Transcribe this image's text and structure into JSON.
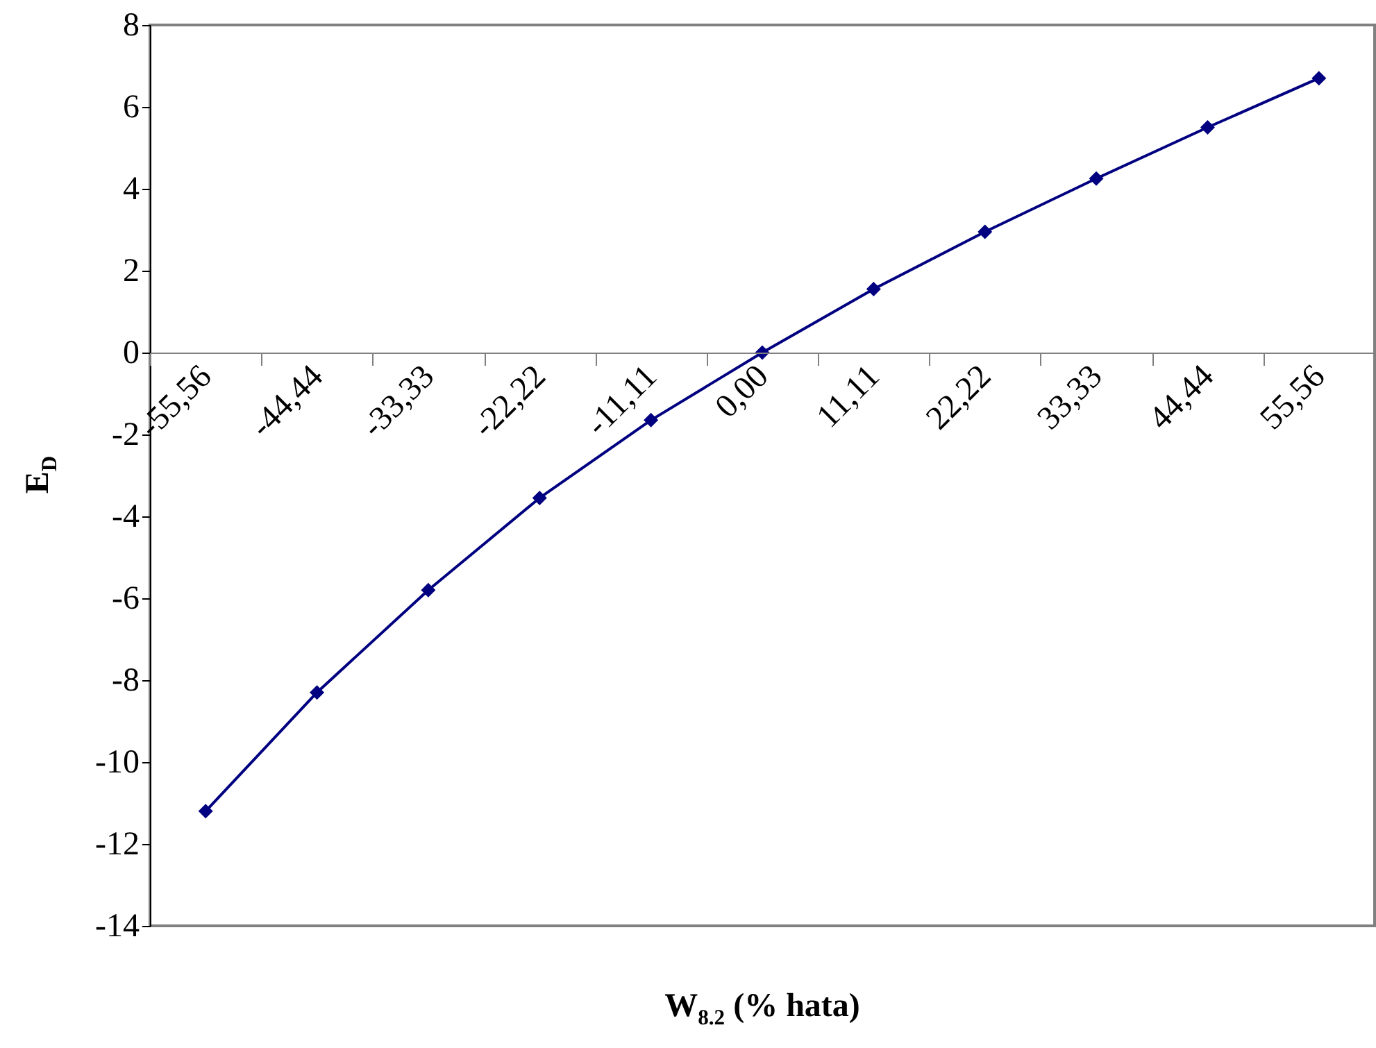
{
  "chart_data": {
    "type": "line",
    "xlabel": "W$_{8.2}$ (% hata)",
    "ylabel": "E$_{D}$",
    "categories": [
      "-55,56",
      "-44,44",
      "-33,33",
      "-22,22",
      "-11,11",
      "0,00",
      "11,11",
      "22,22",
      "33,33",
      "44,44",
      "55,56"
    ],
    "series": [
      {
        "color": "#000080",
        "values": [
          -11.2,
          -8.3,
          -5.8,
          -3.55,
          -1.65,
          0,
          1.55,
          2.95,
          4.25,
          5.5,
          6.7
        ]
      }
    ],
    "ylim": [
      -14,
      8
    ],
    "yticks": [
      -14,
      -12,
      -10,
      -8,
      -6,
      -4,
      -2,
      0,
      2,
      4,
      6,
      8
    ],
    "marker": "diamond",
    "line_style": "solid"
  }
}
